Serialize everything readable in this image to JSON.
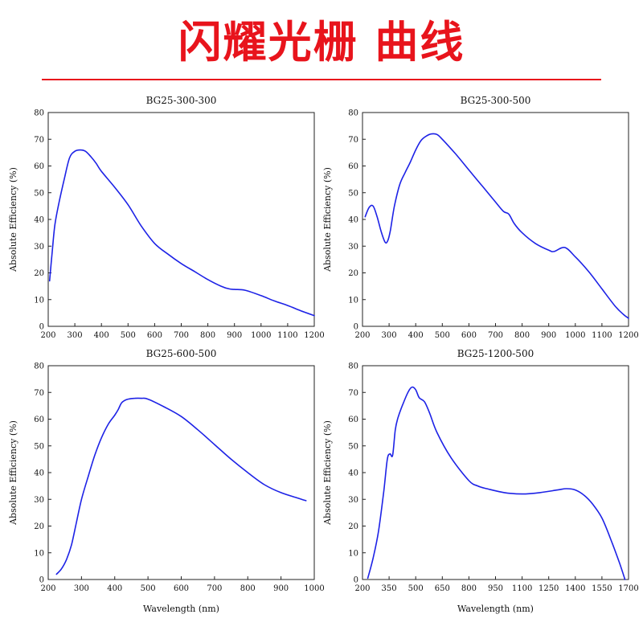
{
  "page": {
    "title": "闪耀光栅  曲线"
  },
  "colors": {
    "title": "#e8141c",
    "curve": "#1d22e6",
    "frame": "#222222"
  },
  "chart_data": [
    {
      "type": "line",
      "title": "BG25-300-300",
      "xlabel": "",
      "ylabel": "Absolute Efficiency (%)",
      "xlim": [
        200,
        1200
      ],
      "ylim": [
        0,
        80
      ],
      "xticks": [
        200,
        300,
        400,
        500,
        600,
        700,
        800,
        900,
        1000,
        1100,
        1200
      ],
      "yticks": [
        0,
        10,
        20,
        30,
        40,
        50,
        60,
        70,
        80
      ],
      "grid": false,
      "series": [
        {
          "x": [
            205,
            215,
            225,
            240,
            260,
            280,
            300,
            320,
            340,
            360,
            380,
            400,
            450,
            500,
            550,
            600,
            650,
            700,
            750,
            800,
            850,
            880,
            900,
            940,
            1000,
            1050,
            1100,
            1150,
            1200
          ],
          "y": [
            17,
            28,
            38,
            46,
            55,
            63,
            65.5,
            66,
            65.5,
            63.5,
            61,
            58,
            52,
            45.5,
            37.5,
            31,
            27,
            23.5,
            20.5,
            17.5,
            15,
            14,
            13.8,
            13.5,
            11.5,
            9.5,
            7.8,
            5.8,
            4
          ]
        }
      ]
    },
    {
      "type": "line",
      "title": "BG25-300-500",
      "xlabel": "",
      "ylabel": "Absolute Efficiency (%)",
      "xlim": [
        200,
        1200
      ],
      "ylim": [
        0,
        80
      ],
      "xticks": [
        200,
        300,
        400,
        500,
        600,
        700,
        800,
        900,
        1000,
        1100,
        1200
      ],
      "yticks": [
        0,
        10,
        20,
        30,
        40,
        50,
        60,
        70,
        80
      ],
      "grid": false,
      "series": [
        {
          "x": [
            210,
            225,
            240,
            255,
            270,
            285,
            295,
            305,
            320,
            340,
            360,
            380,
            400,
            420,
            440,
            460,
            480,
            500,
            550,
            600,
            650,
            700,
            730,
            750,
            770,
            800,
            850,
            900,
            920,
            960,
            1000,
            1050,
            1100,
            1150,
            1180,
            1200
          ],
          "y": [
            41,
            44.5,
            45,
            41,
            35.5,
            31.5,
            32,
            36,
            45,
            53,
            57.5,
            61.5,
            66,
            69.5,
            71.2,
            72,
            71.8,
            70,
            64.5,
            58.5,
            52.5,
            46.5,
            43,
            42,
            38.5,
            35,
            31,
            28.5,
            28,
            29.5,
            26,
            20.5,
            14,
            7.5,
            4.5,
            3
          ]
        }
      ]
    },
    {
      "type": "line",
      "title": "BG25-600-500",
      "xlabel": "Wavelength (nm)",
      "ylabel": "Absolute Efficiency (%)",
      "xlim": [
        200,
        1000
      ],
      "ylim": [
        0,
        80
      ],
      "xticks": [
        200,
        300,
        400,
        500,
        600,
        700,
        800,
        900,
        1000
      ],
      "yticks": [
        0,
        10,
        20,
        30,
        40,
        50,
        60,
        70,
        80
      ],
      "grid": false,
      "series": [
        {
          "x": [
            225,
            240,
            255,
            270,
            285,
            300,
            320,
            340,
            360,
            380,
            400,
            410,
            420,
            430,
            440,
            460,
            480,
            500,
            550,
            600,
            650,
            700,
            750,
            800,
            850,
            900,
            950,
            975
          ],
          "y": [
            2,
            4,
            7.5,
            13,
            21.5,
            30,
            38.5,
            46.5,
            53,
            58,
            61.5,
            63.5,
            66,
            67,
            67.5,
            67.8,
            67.8,
            67.5,
            64.5,
            61,
            56,
            50.5,
            45,
            40,
            35.5,
            32.5,
            30.5,
            29.5
          ]
        }
      ]
    },
    {
      "type": "line",
      "title": "BG25-1200-500",
      "xlabel": "Wavelength (nm)",
      "ylabel": "Absolute Efficiency (%)",
      "xlim": [
        200,
        1700
      ],
      "ylim": [
        0,
        80
      ],
      "xticks": [
        200,
        350,
        500,
        650,
        800,
        950,
        1100,
        1250,
        1400,
        1550,
        1700
      ],
      "yticks": [
        0,
        10,
        20,
        30,
        40,
        50,
        60,
        70,
        80
      ],
      "grid": false,
      "series": [
        {
          "x": [
            230,
            260,
            290,
            320,
            340,
            355,
            370,
            385,
            400,
            430,
            460,
            480,
            500,
            520,
            550,
            580,
            620,
            700,
            800,
            850,
            900,
            1000,
            1100,
            1200,
            1300,
            1350,
            1400,
            1450,
            1500,
            1550,
            1600,
            1650,
            1680
          ],
          "y": [
            0.5,
            8,
            18,
            33,
            45,
            47,
            46.5,
            56,
            60.5,
            66,
            70.5,
            72,
            71,
            68,
            66.5,
            62,
            55,
            45.5,
            37,
            35,
            34,
            32.5,
            32,
            32.5,
            33.5,
            34,
            33.5,
            31.5,
            28,
            23,
            15,
            6,
            0
          ]
        }
      ]
    }
  ]
}
